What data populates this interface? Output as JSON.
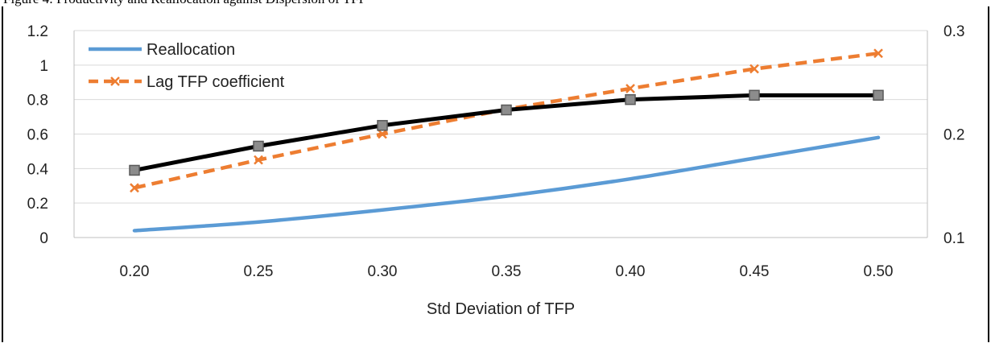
{
  "caption": "Figure 4: Productivity and Reallocation against Dispersion of TFP",
  "chart_data": {
    "type": "line",
    "xlabel": "Std Deviation of TFP",
    "categories": [
      "0.20",
      "0.25",
      "0.30",
      "0.35",
      "0.40",
      "0.45",
      "0.50"
    ],
    "y_left": {
      "range": [
        0,
        1.2
      ],
      "ticks": [
        "0",
        "0.2",
        "0.4",
        "0.6",
        "0.8",
        "1",
        "1.2"
      ]
    },
    "y_right": {
      "range": [
        0.1,
        0.3
      ],
      "ticks": [
        "0.1",
        "0.2",
        "0.3"
      ]
    },
    "legend_position": "top-left",
    "grid": "horizontal",
    "series": [
      {
        "name": "Reallocation",
        "axis": "left",
        "color": "#5b9bd5",
        "style": "solid",
        "marker": "none",
        "values": [
          0.04,
          0.09,
          0.16,
          0.24,
          0.34,
          0.46,
          0.58
        ]
      },
      {
        "name": "Lag TFP coefficient",
        "axis": "right",
        "color": "#ed7d31",
        "style": "dashed",
        "marker": "x",
        "values": [
          0.148,
          0.175,
          0.2,
          0.224,
          0.244,
          0.263,
          0.278
        ]
      },
      {
        "name": "",
        "axis": "left",
        "color": "#000000",
        "style": "solid",
        "marker": "square",
        "values": [
          0.39,
          0.53,
          0.65,
          0.74,
          0.8,
          0.825,
          0.825
        ]
      }
    ]
  }
}
